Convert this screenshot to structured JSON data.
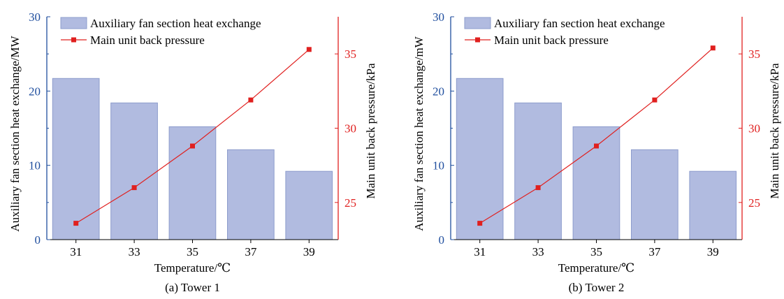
{
  "colors": {
    "bar_fill": "#b1bbe0",
    "bar_stroke": "#8d9ccc",
    "left_axis": "#1f4e9e",
    "right_axis": "#e0201f",
    "line": "#e0201f",
    "marker": "#e0201f"
  },
  "chart_data": [
    {
      "type": "bar",
      "caption": "(a) Tower 1",
      "xlabel": "Temperature/℃",
      "ylabel": "Auxiliary fan section heat exchange/MW",
      "y2label": "Main unit back pressure/kPa",
      "categories": [
        "31",
        "33",
        "35",
        "37",
        "39"
      ],
      "ylim": [
        0,
        30
      ],
      "yticks": [
        "0",
        "10",
        "20",
        "30"
      ],
      "y2lim": [
        22.5,
        37.5
      ],
      "y2ticks": [
        "25",
        "30",
        "35"
      ],
      "series": [
        {
          "name": "Auxiliary fan section heat exchange",
          "type": "bar",
          "axis": "left",
          "values": [
            21.7,
            18.4,
            15.2,
            12.1,
            9.2
          ]
        },
        {
          "name": "Main unit back pressure",
          "type": "line",
          "axis": "right",
          "values": [
            23.6,
            26.0,
            28.8,
            31.9,
            35.3
          ]
        }
      ],
      "legend": "top-left",
      "grid": false
    },
    {
      "type": "bar",
      "caption": "(b) Tower 2",
      "xlabel": "Temperature/℃",
      "ylabel": "Auxiliary fan section heat exchange/mW",
      "y2label": "Main unit back pressure/kPa",
      "categories": [
        "31",
        "33",
        "35",
        "37",
        "39"
      ],
      "ylim": [
        0,
        30
      ],
      "yticks": [
        "0",
        "10",
        "20",
        "30"
      ],
      "y2lim": [
        22.5,
        37.5
      ],
      "y2ticks": [
        "25",
        "30",
        "35"
      ],
      "series": [
        {
          "name": "Auxiliary fan section heat exchange",
          "type": "bar",
          "axis": "left",
          "values": [
            21.7,
            18.4,
            15.2,
            12.1,
            9.2
          ]
        },
        {
          "name": "Main unit back pressure",
          "type": "line",
          "axis": "right",
          "values": [
            23.6,
            26.0,
            28.8,
            31.9,
            35.4
          ]
        }
      ],
      "legend": "top-left",
      "grid": false
    }
  ]
}
